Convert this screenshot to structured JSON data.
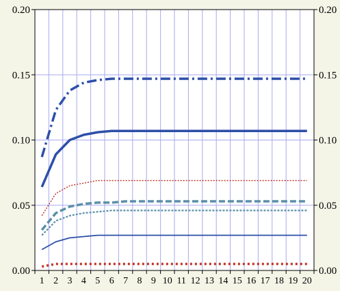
{
  "chart_data": {
    "type": "line",
    "title": "",
    "xlabel": "",
    "ylabel": "",
    "x": [
      1,
      2,
      3,
      4,
      5,
      6,
      7,
      8,
      9,
      10,
      11,
      12,
      13,
      14,
      15,
      16,
      17,
      18,
      19,
      20
    ],
    "xlim": [
      0.5,
      20.5
    ],
    "ylim": [
      0,
      0.2
    ],
    "y_ticks": [
      "0.00",
      "0.05",
      "0.10",
      "0.15",
      "0.20"
    ],
    "y_ticks_right": [
      "0.00",
      "0.05",
      "0.10",
      "0.15",
      "0.20"
    ],
    "grid": true,
    "legend": "none",
    "background": "#f4f4e7",
    "plot_background": "#ffffff",
    "grid_color": "#a9a9f0",
    "series": [
      {
        "style": "dash-dot-thick",
        "color": "#2d4fa8",
        "values": [
          0.087,
          0.123,
          0.138,
          0.144,
          0.146,
          0.147,
          0.147,
          0.147,
          0.147,
          0.147,
          0.147,
          0.147,
          0.147,
          0.147,
          0.147,
          0.147,
          0.147,
          0.147,
          0.147,
          0.147
        ]
      },
      {
        "style": "solid-thick",
        "color": "#2d4fa8",
        "values": [
          0.064,
          0.089,
          0.1,
          0.104,
          0.106,
          0.107,
          0.107,
          0.107,
          0.107,
          0.107,
          0.107,
          0.107,
          0.107,
          0.107,
          0.107,
          0.107,
          0.107,
          0.107,
          0.107,
          0.107
        ]
      },
      {
        "style": "dotted-thin",
        "color": "#c0392b",
        "values": [
          0.042,
          0.059,
          0.065,
          0.067,
          0.069,
          0.069,
          0.069,
          0.069,
          0.069,
          0.069,
          0.069,
          0.069,
          0.069,
          0.069,
          0.069,
          0.069,
          0.069,
          0.069,
          0.069,
          0.069
        ]
      },
      {
        "style": "dashed-thick",
        "color": "#5b8fa8",
        "values": [
          0.031,
          0.044,
          0.049,
          0.051,
          0.052,
          0.052,
          0.053,
          0.053,
          0.053,
          0.053,
          0.053,
          0.053,
          0.053,
          0.053,
          0.053,
          0.053,
          0.053,
          0.053,
          0.053,
          0.053
        ]
      },
      {
        "style": "dotted-medium",
        "color": "#5b8fa8",
        "values": [
          0.027,
          0.038,
          0.042,
          0.044,
          0.045,
          0.046,
          0.046,
          0.046,
          0.046,
          0.046,
          0.046,
          0.046,
          0.046,
          0.046,
          0.046,
          0.046,
          0.046,
          0.046,
          0.046,
          0.046
        ]
      },
      {
        "style": "solid-thin",
        "color": "#2d4fa8",
        "values": [
          0.016,
          0.022,
          0.025,
          0.026,
          0.027,
          0.027,
          0.027,
          0.027,
          0.027,
          0.027,
          0.027,
          0.027,
          0.027,
          0.027,
          0.027,
          0.027,
          0.027,
          0.027,
          0.027,
          0.027
        ]
      },
      {
        "style": "dotted-thick",
        "color": "#c0392b",
        "values": [
          0.003,
          0.005,
          0.005,
          0.005,
          0.005,
          0.005,
          0.005,
          0.005,
          0.005,
          0.005,
          0.005,
          0.005,
          0.005,
          0.005,
          0.005,
          0.005,
          0.005,
          0.005,
          0.005,
          0.005
        ]
      }
    ]
  }
}
